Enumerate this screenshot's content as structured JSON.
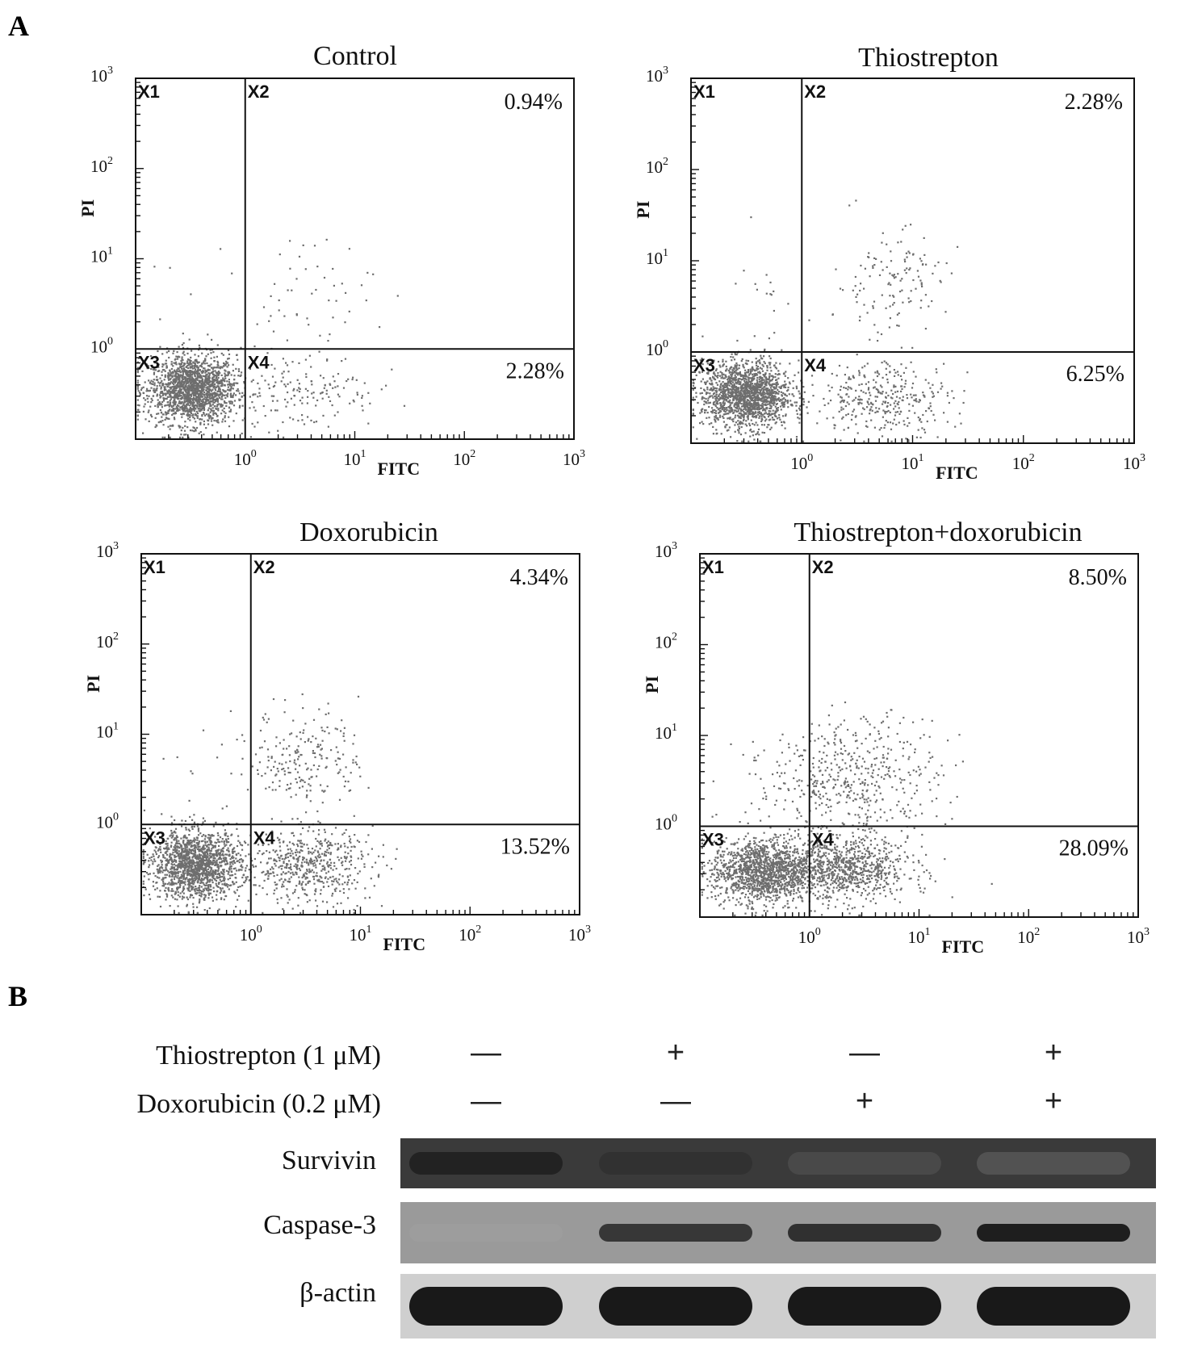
{
  "panel_labels": {
    "a": "A",
    "b": "B"
  },
  "colors": {
    "dot": "#6e6e6e",
    "frame": "#111111",
    "blot_bg": "#b4b4b4",
    "band": "#141414"
  },
  "chart_data": [
    {
      "type": "scatter",
      "title": "Control",
      "xlabel": "FITC",
      "ylabel": "PI",
      "x_scale": "log",
      "y_scale": "log",
      "xlim": [
        0.1,
        1000
      ],
      "ylim": [
        0.1,
        1000
      ],
      "x_ticks": [
        {
          "base": "10",
          "exp": "0"
        },
        {
          "base": "10",
          "exp": "1"
        },
        {
          "base": "10",
          "exp": "2"
        },
        {
          "base": "10",
          "exp": "3"
        }
      ],
      "y_ticks": [
        {
          "base": "10",
          "exp": "0"
        },
        {
          "base": "10",
          "exp": "1"
        },
        {
          "base": "10",
          "exp": "2"
        },
        {
          "base": "10",
          "exp": "3"
        }
      ],
      "gate": {
        "x": 1,
        "y": 1
      },
      "quadrants": [
        "X1",
        "X2",
        "X3",
        "X4"
      ],
      "percentages": {
        "X2": "0.94%",
        "X4": "2.28%"
      },
      "populations": [
        {
          "count": 1800,
          "log_cx": -0.48,
          "log_cy": -0.45,
          "sd_x": 0.2,
          "sd_y": 0.19
        },
        {
          "count": 150,
          "log_cx": 0.55,
          "log_cy": -0.45,
          "sd_x": 0.33,
          "sd_y": 0.22
        },
        {
          "count": 55,
          "log_cx": 0.55,
          "log_cy": 0.6,
          "sd_x": 0.32,
          "sd_y": 0.33
        },
        {
          "count": 6,
          "log_cx": -0.3,
          "log_cy": 0.4,
          "sd_x": 0.3,
          "sd_y": 0.4
        }
      ]
    },
    {
      "type": "scatter",
      "title": "Thiostrepton",
      "xlabel": "FITC",
      "ylabel": "PI",
      "x_scale": "log",
      "y_scale": "log",
      "xlim": [
        0.1,
        1000
      ],
      "ylim": [
        0.1,
        1000
      ],
      "x_ticks": [
        {
          "base": "10",
          "exp": "0"
        },
        {
          "base": "10",
          "exp": "1"
        },
        {
          "base": "10",
          "exp": "2"
        },
        {
          "base": "10",
          "exp": "3"
        }
      ],
      "y_ticks": [
        {
          "base": "10",
          "exp": "0"
        },
        {
          "base": "10",
          "exp": "1"
        },
        {
          "base": "10",
          "exp": "2"
        },
        {
          "base": "10",
          "exp": "3"
        }
      ],
      "gate": {
        "x": 1,
        "y": 1
      },
      "quadrants": [
        "X1",
        "X2",
        "X3",
        "X4"
      ],
      "percentages": {
        "X2": "2.28%",
        "X4": "6.25%"
      },
      "populations": [
        {
          "count": 1650,
          "log_cx": -0.5,
          "log_cy": -0.47,
          "sd_x": 0.2,
          "sd_y": 0.18
        },
        {
          "count": 330,
          "log_cx": 0.75,
          "log_cy": -0.5,
          "sd_x": 0.3,
          "sd_y": 0.2
        },
        {
          "count": 130,
          "log_cx": 0.8,
          "log_cy": 0.75,
          "sd_x": 0.25,
          "sd_y": 0.3
        },
        {
          "count": 18,
          "log_cx": -0.3,
          "log_cy": 0.5,
          "sd_x": 0.28,
          "sd_y": 0.35
        }
      ]
    },
    {
      "type": "scatter",
      "title": "Doxorubicin",
      "xlabel": "FITC",
      "ylabel": "PI",
      "x_scale": "log",
      "y_scale": "log",
      "xlim": [
        0.1,
        1000
      ],
      "ylim": [
        0.1,
        1000
      ],
      "x_ticks": [
        {
          "base": "10",
          "exp": "0"
        },
        {
          "base": "10",
          "exp": "1"
        },
        {
          "base": "10",
          "exp": "2"
        },
        {
          "base": "10",
          "exp": "3"
        }
      ],
      "y_ticks": [
        {
          "base": "10",
          "exp": "0"
        },
        {
          "base": "10",
          "exp": "1"
        },
        {
          "base": "10",
          "exp": "2"
        },
        {
          "base": "10",
          "exp": "3"
        }
      ],
      "gate": {
        "x": 1,
        "y": 1
      },
      "quadrants": [
        "X1",
        "X2",
        "X3",
        "X4"
      ],
      "percentages": {
        "X2": "4.34%",
        "X4": "13.52%"
      },
      "populations": [
        {
          "count": 1550,
          "log_cx": -0.5,
          "log_cy": -0.45,
          "sd_x": 0.2,
          "sd_y": 0.19
        },
        {
          "count": 550,
          "log_cx": 0.5,
          "log_cy": -0.45,
          "sd_x": 0.3,
          "sd_y": 0.2
        },
        {
          "count": 210,
          "log_cx": 0.5,
          "log_cy": 0.75,
          "sd_x": 0.25,
          "sd_y": 0.28
        },
        {
          "count": 14,
          "log_cx": -0.3,
          "log_cy": 0.55,
          "sd_x": 0.3,
          "sd_y": 0.4
        }
      ]
    },
    {
      "type": "scatter",
      "title": "Thiostrepton+doxorubicin",
      "xlabel": "FITC",
      "ylabel": "PI",
      "x_scale": "log",
      "y_scale": "log",
      "xlim": [
        0.1,
        1000
      ],
      "ylim": [
        0.1,
        1000
      ],
      "x_ticks": [
        {
          "base": "10",
          "exp": "0"
        },
        {
          "base": "10",
          "exp": "1"
        },
        {
          "base": "10",
          "exp": "2"
        },
        {
          "base": "10",
          "exp": "3"
        }
      ],
      "y_ticks": [
        {
          "base": "10",
          "exp": "0"
        },
        {
          "base": "10",
          "exp": "1"
        },
        {
          "base": "10",
          "exp": "2"
        },
        {
          "base": "10",
          "exp": "3"
        }
      ],
      "gate": {
        "x": 1,
        "y": 1
      },
      "quadrants": [
        "X1",
        "X2",
        "X3",
        "X4"
      ],
      "percentages": {
        "X2": "8.50%",
        "X4": "28.09%"
      },
      "populations": [
        {
          "count": 1250,
          "log_cx": -0.45,
          "log_cy": -0.5,
          "sd_x": 0.22,
          "sd_y": 0.17
        },
        {
          "count": 1000,
          "log_cx": 0.25,
          "log_cy": -0.47,
          "sd_x": 0.33,
          "sd_y": 0.18
        },
        {
          "count": 420,
          "log_cx": 0.5,
          "log_cy": 0.55,
          "sd_x": 0.35,
          "sd_y": 0.33
        },
        {
          "count": 90,
          "log_cx": -0.2,
          "log_cy": 0.4,
          "sd_x": 0.28,
          "sd_y": 0.32
        }
      ]
    }
  ],
  "western_blot": {
    "treatments": [
      {
        "label": "Thiostrepton (1 μM)",
        "signs": [
          "—",
          "+",
          "—",
          "+"
        ]
      },
      {
        "label": "Doxorubicin (0.2 μM)",
        "signs": [
          "—",
          "—",
          "+",
          "+"
        ]
      }
    ],
    "proteins": [
      {
        "label": "Survivin",
        "band_intensity": [
          0.95,
          0.85,
          0.62,
          0.3
        ]
      },
      {
        "label": "Caspase-3",
        "band_intensity": [
          0.12,
          0.8,
          0.85,
          0.97
        ]
      },
      {
        "label": "β-actin",
        "band_intensity": [
          1,
          1,
          1,
          1
        ]
      }
    ]
  }
}
